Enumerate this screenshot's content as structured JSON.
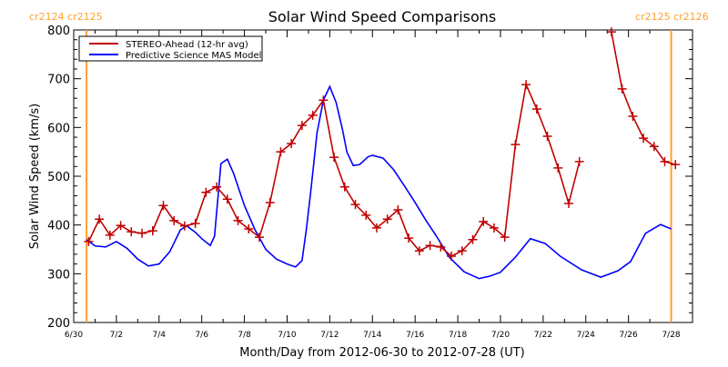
{
  "chart_data": {
    "type": "line",
    "title": "Solar Wind Speed Comparisons",
    "xlabel": "Month/Day from 2012-06-30 to 2012-07-28 (UT)",
    "ylabel": "Solar Wind Speed (km/s)",
    "xlim_days": [
      0,
      29
    ],
    "ylim": [
      200,
      800
    ],
    "x_tick_labels": [
      "6/30",
      "7/2",
      "7/4",
      "7/6",
      "7/8",
      "7/10",
      "7/12",
      "7/14",
      "7/16",
      "7/18",
      "7/20",
      "7/22",
      "7/24",
      "7/26",
      "7/28"
    ],
    "x_tick_days": [
      0,
      2,
      4,
      6,
      8,
      10,
      12,
      14,
      16,
      18,
      20,
      22,
      24,
      26,
      28
    ],
    "y_ticks": [
      200,
      300,
      400,
      500,
      600,
      700,
      800
    ],
    "legend_position": "top-left",
    "carrington_markers": [
      {
        "day": 0.6,
        "label": "cr2124 cr2125",
        "position": "top-left"
      },
      {
        "day": 28.0,
        "label": "cr2125 cr2126",
        "position": "top-right"
      }
    ],
    "series": [
      {
        "name": "STEREO-Ahead (12-hr avg)",
        "color": "#c00000",
        "marker": "plus",
        "x_start_day": 0.7,
        "x_step_days": 0.5,
        "values": [
          366,
          412,
          379,
          399,
          386,
          383,
          388,
          440,
          409,
          398,
          403,
          467,
          478,
          453,
          409,
          392,
          375,
          446,
          550,
          567,
          604,
          625,
          656,
          539,
          478,
          442,
          420,
          394,
          412,
          431,
          373,
          347,
          358,
          355,
          336,
          347,
          370,
          407,
          394,
          375,
          565,
          688,
          638,
          582,
          517,
          444,
          530,
          null,
          null,
          796,
          679,
          623,
          578,
          561,
          530,
          524
        ]
      },
      {
        "name": "Predictive Science MAS Model",
        "color": "#0000ff",
        "points": [
          [
            0.6,
            370
          ],
          [
            1,
            357
          ],
          [
            1.5,
            355
          ],
          [
            2,
            366
          ],
          [
            2.5,
            352
          ],
          [
            3,
            330
          ],
          [
            3.5,
            316
          ],
          [
            4,
            320
          ],
          [
            4.5,
            345
          ],
          [
            5,
            390
          ],
          [
            5.3,
            398
          ],
          [
            5.7,
            385
          ],
          [
            6,
            372
          ],
          [
            6.4,
            358
          ],
          [
            6.6,
            377
          ],
          [
            6.9,
            526
          ],
          [
            7.2,
            535
          ],
          [
            7.5,
            505
          ],
          [
            8,
            440
          ],
          [
            8.5,
            390
          ],
          [
            9,
            350
          ],
          [
            9.5,
            330
          ],
          [
            10,
            320
          ],
          [
            10.4,
            314
          ],
          [
            10.7,
            327
          ],
          [
            10.9,
            390
          ],
          [
            11.1,
            465
          ],
          [
            11.4,
            588
          ],
          [
            11.7,
            656
          ],
          [
            12,
            684
          ],
          [
            12.3,
            651
          ],
          [
            12.6,
            595
          ],
          [
            12.8,
            550
          ],
          [
            13.1,
            522
          ],
          [
            13.4,
            524
          ],
          [
            13.8,
            540
          ],
          [
            14,
            543
          ],
          [
            14.5,
            537
          ],
          [
            15,
            513
          ],
          [
            15.5,
            480
          ],
          [
            16,
            446
          ],
          [
            16.5,
            410
          ],
          [
            17,
            377
          ],
          [
            17.6,
            334
          ],
          [
            18.3,
            304
          ],
          [
            19,
            290
          ],
          [
            19.5,
            295
          ],
          [
            20,
            303
          ],
          [
            20.7,
            334
          ],
          [
            21.4,
            372
          ],
          [
            22.1,
            362
          ],
          [
            22.8,
            336
          ],
          [
            23.8,
            308
          ],
          [
            24.7,
            293
          ],
          [
            25.5,
            306
          ],
          [
            26.1,
            325
          ],
          [
            26.8,
            383
          ],
          [
            27.5,
            401
          ],
          [
            28,
            392
          ]
        ]
      }
    ]
  },
  "colors": {
    "marker_line": "#ffa030",
    "axis": "#000000"
  }
}
